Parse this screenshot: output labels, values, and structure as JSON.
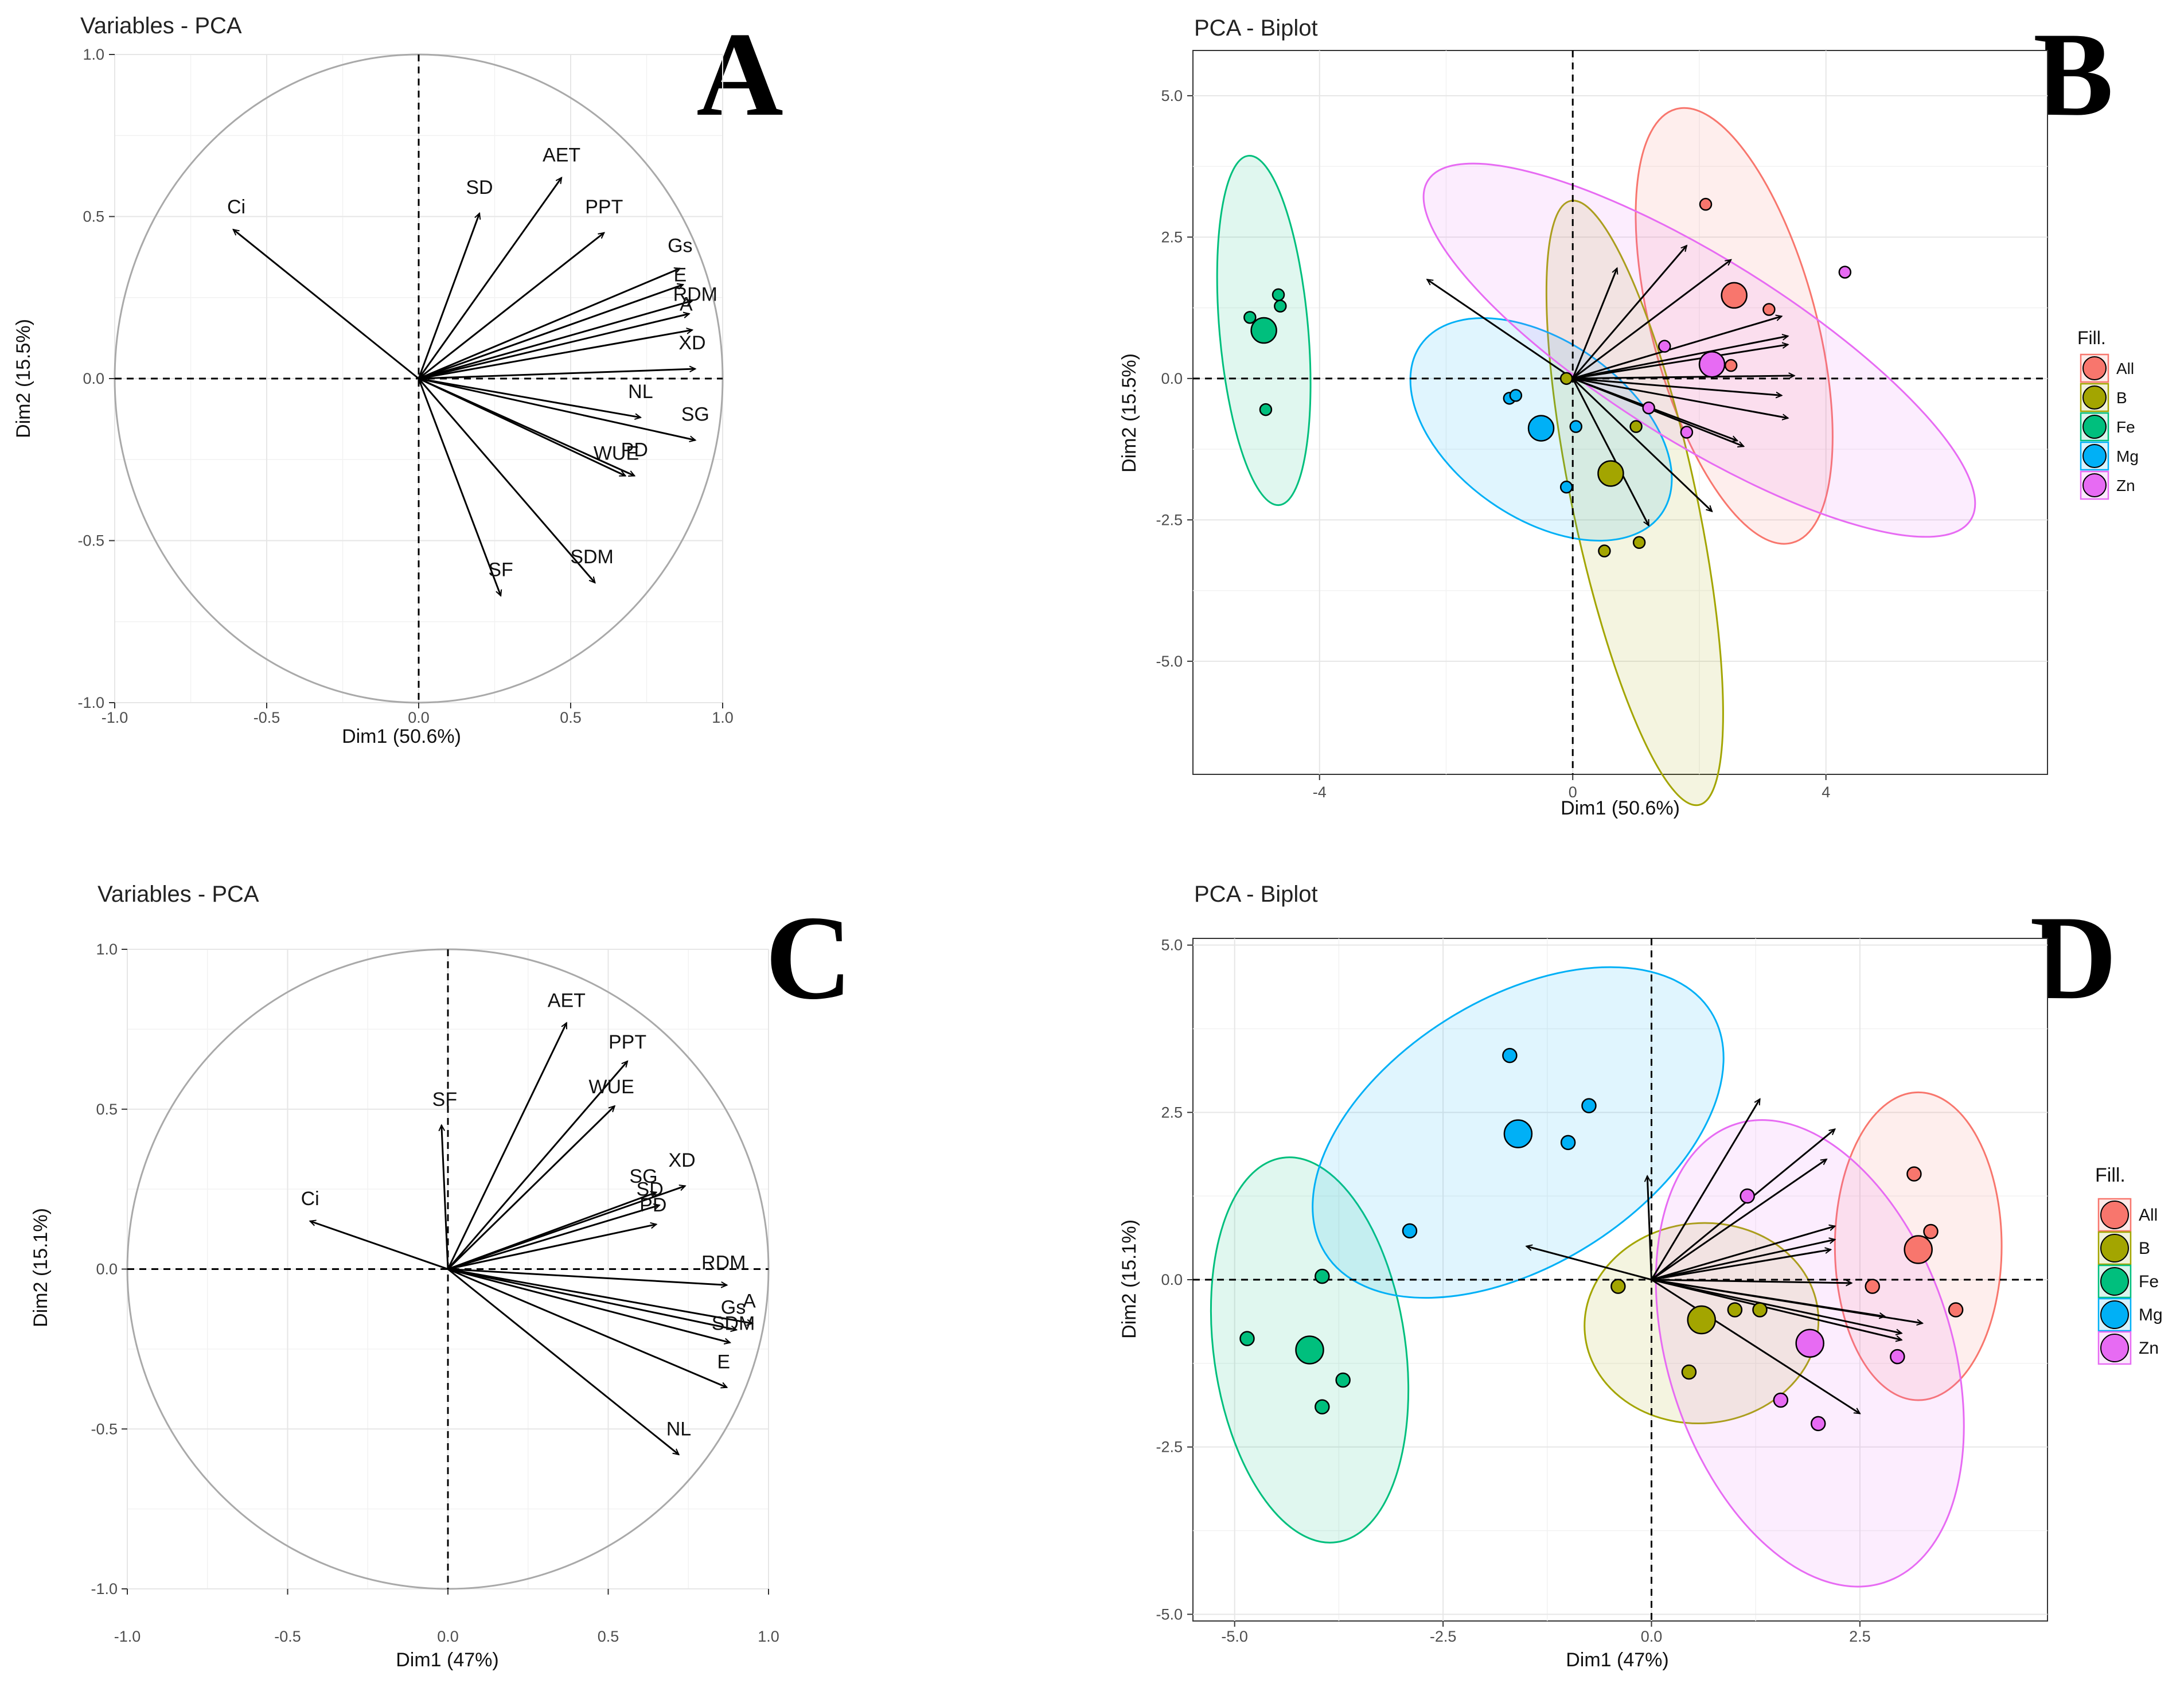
{
  "chart_data": [
    {
      "type": "scatter",
      "panel_label": "A",
      "title": "Variables - PCA",
      "xlabel": "Dim1 (50.6%)",
      "ylabel": "Dim2 (15.5%)",
      "xlim": [
        -1.0,
        1.0
      ],
      "ylim": [
        -1.0,
        1.0
      ],
      "xticks": [
        "-1.0",
        "-0.5",
        "0.0",
        "0.5",
        "1.0"
      ],
      "yticks": [
        "1.0",
        "0.5",
        "0.0",
        "-0.5",
        "-1.0"
      ],
      "vectors": [
        {
          "name": "Ci",
          "x": -0.61,
          "y": 0.46,
          "lx": -0.6,
          "ly": 0.51
        },
        {
          "name": "SD",
          "x": 0.2,
          "y": 0.51,
          "lx": 0.2,
          "ly": 0.57
        },
        {
          "name": "AET",
          "x": 0.47,
          "y": 0.62,
          "lx": 0.47,
          "ly": 0.67
        },
        {
          "name": "PPT",
          "x": 0.61,
          "y": 0.45,
          "lx": 0.61,
          "ly": 0.51
        },
        {
          "name": "Gs",
          "x": 0.86,
          "y": 0.34,
          "lx": 0.86,
          "ly": 0.39
        },
        {
          "name": "E",
          "x": 0.87,
          "y": 0.29,
          "lx": 0.86,
          "ly": 0.3
        },
        {
          "name": "RDM",
          "x": 0.9,
          "y": 0.24,
          "lx": 0.91,
          "ly": 0.24
        },
        {
          "name": "A",
          "x": 0.89,
          "y": 0.2,
          "lx": 0.88,
          "ly": 0.21
        },
        {
          "name": "XD",
          "x": 0.9,
          "y": 0.15,
          "lx": 0.9,
          "ly": 0.09
        },
        {
          "name": "",
          "x": 0.91,
          "y": 0.03,
          "lx": 0.91,
          "ly": 0.03
        },
        {
          "name": "NL",
          "x": 0.73,
          "y": -0.12,
          "lx": 0.73,
          "ly": -0.06
        },
        {
          "name": "SG",
          "x": 0.91,
          "y": -0.19,
          "lx": 0.91,
          "ly": -0.13
        },
        {
          "name": "WUE",
          "x": 0.68,
          "y": -0.3,
          "lx": 0.65,
          "ly": -0.25
        },
        {
          "name": "PD",
          "x": 0.71,
          "y": -0.3,
          "lx": 0.71,
          "ly": -0.24
        },
        {
          "name": "SDM",
          "x": 0.58,
          "y": -0.63,
          "lx": 0.57,
          "ly": -0.57
        },
        {
          "name": "SF",
          "x": 0.27,
          "y": -0.67,
          "lx": 0.27,
          "ly": -0.61
        }
      ]
    },
    {
      "type": "scatter",
      "panel_label": "B",
      "title": "PCA - Biplot",
      "xlabel": "Dim1 (50.6%)",
      "ylabel": "Dim2 (15.5%)",
      "xlim": [
        -6.0,
        7.5
      ],
      "ylim": [
        -7.0,
        5.8
      ],
      "xticks": [
        "-4",
        "0",
        "4"
      ],
      "xtick_values": [
        -4,
        0,
        4
      ],
      "yticks": [
        "5.0",
        "2.5",
        "0.0",
        "-2.5",
        "-5.0"
      ],
      "ytick_values": [
        5,
        2.5,
        0,
        -2.5,
        -5
      ],
      "legend_title": "Fill.",
      "legend": [
        "All",
        "B",
        "Fe",
        "Mg",
        "Zn"
      ],
      "colors": {
        "All": "#f8766d",
        "B": "#a3a500",
        "Fe": "#00bf7d",
        "Mg": "#00b0f6",
        "Zn": "#e76bf3"
      },
      "points": [
        {
          "group": "All",
          "x": 2.1,
          "y": 3.08
        },
        {
          "group": "All",
          "x": 3.1,
          "y": 1.22
        },
        {
          "group": "All",
          "x": 2.5,
          "y": 0.23
        },
        {
          "group": "All",
          "x": 2.55,
          "y": 1.47,
          "centroid": true
        },
        {
          "group": "B",
          "x": 1.0,
          "y": -0.85
        },
        {
          "group": "B",
          "x": 1.05,
          "y": -2.9
        },
        {
          "group": "B",
          "x": 0.5,
          "y": -3.05
        },
        {
          "group": "B",
          "x": -0.1,
          "y": 0.0
        },
        {
          "group": "B",
          "x": 0.6,
          "y": -1.68,
          "centroid": true
        },
        {
          "group": "Fe",
          "x": -4.65,
          "y": 1.48
        },
        {
          "group": "Fe",
          "x": -4.62,
          "y": 1.28
        },
        {
          "group": "Fe",
          "x": -5.1,
          "y": 1.08
        },
        {
          "group": "Fe",
          "x": -4.85,
          "y": -0.55
        },
        {
          "group": "Fe",
          "x": -4.88,
          "y": 0.85,
          "centroid": true
        },
        {
          "group": "Mg",
          "x": -1.0,
          "y": -0.35
        },
        {
          "group": "Mg",
          "x": -0.9,
          "y": -0.3
        },
        {
          "group": "Mg",
          "x": 0.05,
          "y": -0.85
        },
        {
          "group": "Mg",
          "x": -0.1,
          "y": -1.92
        },
        {
          "group": "Mg",
          "x": -0.5,
          "y": -0.88,
          "centroid": true
        },
        {
          "group": "Zn",
          "x": 4.3,
          "y": 1.88
        },
        {
          "group": "Zn",
          "x": 1.45,
          "y": 0.57
        },
        {
          "group": "Zn",
          "x": 1.2,
          "y": -0.52
        },
        {
          "group": "Zn",
          "x": 1.8,
          "y": -0.95
        },
        {
          "group": "Zn",
          "x": 2.2,
          "y": 0.25,
          "centroid": true
        }
      ],
      "ellipses": [
        {
          "group": "All",
          "cx": 2.55,
          "cy": 0.93,
          "rx": 1.3,
          "ry": 3.97,
          "angle": -15
        },
        {
          "group": "B",
          "cx": 0.98,
          "cy": -2.2,
          "rx": 0.98,
          "ry": 5.46,
          "angle": -12
        },
        {
          "group": "Fe",
          "cx": -4.88,
          "cy": 0.85,
          "rx": 0.7,
          "ry": 3.1,
          "angle": -5
        },
        {
          "group": "Mg",
          "cx": -0.5,
          "cy": -0.9,
          "rx": 1.4,
          "ry": 2.6,
          "angle": -55
        },
        {
          "group": "Zn",
          "cx": 2.0,
          "cy": 0.5,
          "rx": 1.45,
          "ry": 5.66,
          "angle": -58
        }
      ],
      "arrows": [
        {
          "x": -2.3,
          "y": 1.75
        },
        {
          "x": 0.7,
          "y": 1.95
        },
        {
          "x": 1.8,
          "y": 2.35
        },
        {
          "x": 2.5,
          "y": 2.1
        },
        {
          "x": 3.3,
          "y": 1.1
        },
        {
          "x": 3.4,
          "y": 0.75
        },
        {
          "x": 3.4,
          "y": 0.6
        },
        {
          "x": 3.5,
          "y": 0.05
        },
        {
          "x": 3.3,
          "y": -0.3
        },
        {
          "x": 3.4,
          "y": -0.7
        },
        {
          "x": 2.7,
          "y": -1.2
        },
        {
          "x": 2.6,
          "y": -1.1
        },
        {
          "x": 2.2,
          "y": -2.35
        },
        {
          "x": 1.2,
          "y": -2.6
        }
      ]
    },
    {
      "type": "scatter",
      "panel_label": "C",
      "title": "Variables - PCA",
      "xlabel": "Dim1 (47%)",
      "ylabel": "Dim2 (15.1%)",
      "xlim": [
        -1.0,
        1.0
      ],
      "ylim": [
        -1.0,
        1.0
      ],
      "xticks": [
        "-1.0",
        "-0.5",
        "0.0",
        "0.5",
        "1.0"
      ],
      "yticks": [
        "1.0",
        "0.5",
        "0.0",
        "-0.5",
        "-1.0"
      ],
      "vectors": [
        {
          "name": "Ci",
          "x": -0.43,
          "y": 0.15,
          "lx": -0.43,
          "ly": 0.2
        },
        {
          "name": "SF",
          "x": -0.02,
          "y": 0.45,
          "lx": -0.01,
          "ly": 0.51
        },
        {
          "name": "AET",
          "x": 0.37,
          "y": 0.77,
          "lx": 0.37,
          "ly": 0.82
        },
        {
          "name": "PPT",
          "x": 0.56,
          "y": 0.65,
          "lx": 0.56,
          "ly": 0.69
        },
        {
          "name": "WUE",
          "x": 0.52,
          "y": 0.51,
          "lx": 0.51,
          "ly": 0.55
        },
        {
          "name": "SG",
          "x": 0.65,
          "y": 0.24,
          "lx": 0.61,
          "ly": 0.27
        },
        {
          "name": "XD",
          "x": 0.74,
          "y": 0.26,
          "lx": 0.73,
          "ly": 0.32
        },
        {
          "name": "SD",
          "x": 0.66,
          "y": 0.2,
          "lx": 0.63,
          "ly": 0.23
        },
        {
          "name": "PD",
          "x": 0.65,
          "y": 0.14,
          "lx": 0.64,
          "ly": 0.18
        },
        {
          "name": "RDM",
          "x": 0.87,
          "y": -0.05,
          "lx": 0.86,
          "ly": 0.0
        },
        {
          "name": "A",
          "x": 0.95,
          "y": -0.17,
          "lx": 0.94,
          "ly": -0.12
        },
        {
          "name": "Gs",
          "x": 0.9,
          "y": -0.19,
          "lx": 0.89,
          "ly": -0.14
        },
        {
          "name": "SDM",
          "x": 0.88,
          "y": -0.23,
          "lx": 0.89,
          "ly": -0.19
        },
        {
          "name": "E",
          "x": 0.87,
          "y": -0.37,
          "lx": 0.86,
          "ly": -0.31
        },
        {
          "name": "NL",
          "x": 0.72,
          "y": -0.58,
          "lx": 0.72,
          "ly": -0.52
        }
      ]
    },
    {
      "type": "scatter",
      "panel_label": "D",
      "title": "PCA - Biplot",
      "xlabel": "Dim1 (47%)",
      "ylabel": "Dim2 (15.1%)",
      "xlim": [
        -5.5,
        4.75
      ],
      "ylim": [
        -5.1,
        5.1
      ],
      "xticks": [
        "-5.0",
        "-2.5",
        "0.0",
        "2.5"
      ],
      "xtick_values": [
        -5,
        -2.5,
        0,
        2.5
      ],
      "yticks": [
        "5.0",
        "2.5",
        "0.0",
        "-2.5",
        "-5.0"
      ],
      "ytick_values": [
        5,
        2.5,
        0,
        -2.5,
        -5
      ],
      "legend_title": "Fill.",
      "legend": [
        "All",
        "B",
        "Fe",
        "Mg",
        "Zn"
      ],
      "colors": {
        "All": "#f8766d",
        "B": "#a3a500",
        "Fe": "#00bf7d",
        "Mg": "#00b0f6",
        "Zn": "#e76bf3"
      },
      "points": [
        {
          "group": "All",
          "x": 3.15,
          "y": 1.58
        },
        {
          "group": "All",
          "x": 3.35,
          "y": 0.72
        },
        {
          "group": "All",
          "x": 2.65,
          "y": -0.1
        },
        {
          "group": "All",
          "x": 3.65,
          "y": -0.45
        },
        {
          "group": "All",
          "x": 3.2,
          "y": 0.45,
          "centroid": true
        },
        {
          "group": "B",
          "x": -0.4,
          "y": -0.1
        },
        {
          "group": "B",
          "x": 1.0,
          "y": -0.45
        },
        {
          "group": "B",
          "x": 1.3,
          "y": -0.45
        },
        {
          "group": "B",
          "x": 0.45,
          "y": -1.38
        },
        {
          "group": "B",
          "x": 0.6,
          "y": -0.6,
          "centroid": true
        },
        {
          "group": "Fe",
          "x": -3.95,
          "y": 0.05
        },
        {
          "group": "Fe",
          "x": -4.85,
          "y": -0.88
        },
        {
          "group": "Fe",
          "x": -3.7,
          "y": -1.5
        },
        {
          "group": "Fe",
          "x": -3.95,
          "y": -1.9
        },
        {
          "group": "Fe",
          "x": -4.1,
          "y": -1.05,
          "centroid": true
        },
        {
          "group": "Mg",
          "x": -1.7,
          "y": 3.35
        },
        {
          "group": "Mg",
          "x": -0.75,
          "y": 2.6
        },
        {
          "group": "Mg",
          "x": -1.0,
          "y": 2.05
        },
        {
          "group": "Mg",
          "x": -2.9,
          "y": 0.73
        },
        {
          "group": "Mg",
          "x": -1.6,
          "y": 2.18,
          "centroid": true
        },
        {
          "group": "Zn",
          "x": 1.15,
          "y": 1.25
        },
        {
          "group": "Zn",
          "x": 2.95,
          "y": -1.15
        },
        {
          "group": "Zn",
          "x": 1.55,
          "y": -1.8
        },
        {
          "group": "Zn",
          "x": 2.0,
          "y": -2.15
        },
        {
          "group": "Zn",
          "x": 1.9,
          "y": -0.95,
          "centroid": true
        }
      ],
      "ellipses": [
        {
          "group": "All",
          "cx": 3.2,
          "cy": 0.5,
          "rx": 1.0,
          "ry": 2.3,
          "angle": 0
        },
        {
          "group": "B",
          "cx": 0.6,
          "cy": -0.65,
          "rx": 1.2,
          "ry": 1.75,
          "angle": 85
        },
        {
          "group": "Fe",
          "cx": -4.1,
          "cy": -1.05,
          "rx": 1.15,
          "ry": 2.9,
          "angle": -8
        },
        {
          "group": "Mg",
          "cx": -1.6,
          "cy": 2.2,
          "rx": 1.6,
          "ry": 3.4,
          "angle": 58
        },
        {
          "group": "Zn",
          "cx": 1.9,
          "cy": -1.1,
          "rx": 1.7,
          "ry": 3.6,
          "angle": -18
        }
      ],
      "arrows": [
        {
          "x": -1.5,
          "y": 0.5
        },
        {
          "x": -0.05,
          "y": 1.55
        },
        {
          "x": 1.3,
          "y": 2.7
        },
        {
          "x": 2.2,
          "y": 2.25
        },
        {
          "x": 2.1,
          "y": 1.8
        },
        {
          "x": 2.2,
          "y": 0.8
        },
        {
          "x": 2.2,
          "y": 0.6
        },
        {
          "x": 2.15,
          "y": 0.45
        },
        {
          "x": 2.4,
          "y": -0.05
        },
        {
          "x": 2.8,
          "y": -0.55
        },
        {
          "x": 3.25,
          "y": -0.65
        },
        {
          "x": 3.0,
          "y": -0.8
        },
        {
          "x": 3.0,
          "y": -0.9
        },
        {
          "x": 2.5,
          "y": -2.0
        }
      ]
    }
  ]
}
